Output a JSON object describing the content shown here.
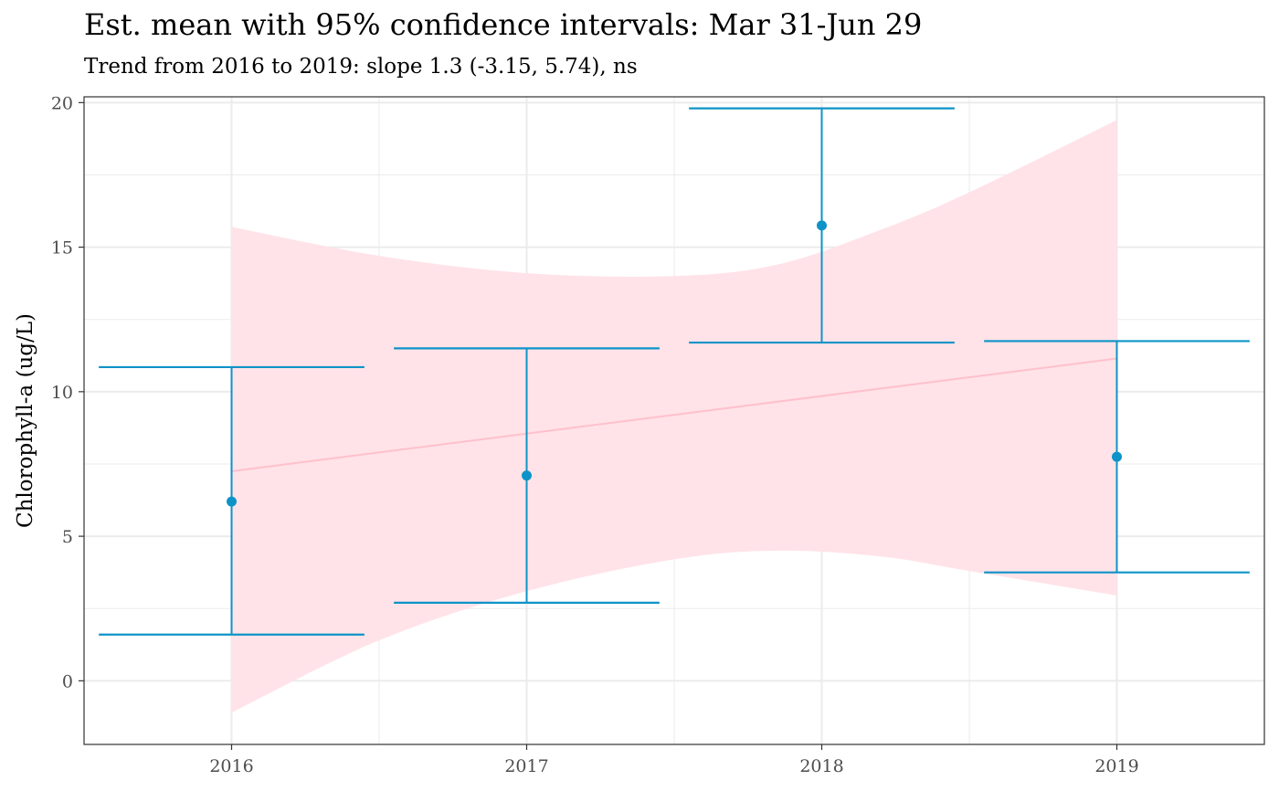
{
  "chart_data": {
    "type": "errorbar",
    "title": "Est. mean with 95% confidence intervals: Mar 31-Jun 29",
    "subtitle": "Trend from 2016 to 2019: slope 1.3 (-3.15, 5.74), ns",
    "xlabel": "",
    "ylabel": "Chlorophyll-a (ug/L)",
    "categories": [
      "2016",
      "2017",
      "2018",
      "2019"
    ],
    "x": [
      2016,
      2017,
      2018,
      2019
    ],
    "means": [
      6.2,
      7.1,
      15.75,
      7.75
    ],
    "lower": [
      1.6,
      2.7,
      11.7,
      3.75
    ],
    "upper": [
      10.85,
      11.5,
      19.8,
      11.75
    ],
    "trend": {
      "x": [
        2016,
        2019
      ],
      "y": [
        7.25,
        11.15
      ],
      "band": {
        "x": [
          2016,
          2016.5,
          2017,
          2017.5,
          2017.85,
          2018.2,
          2018.5,
          2019
        ],
        "lower": [
          -1.1,
          1.4,
          3.1,
          4.2,
          4.5,
          4.3,
          3.8,
          2.95
        ],
        "upper": [
          15.7,
          14.7,
          14.1,
          14.0,
          14.4,
          15.6,
          16.9,
          19.4
        ]
      }
    },
    "xlim": [
      2015.5,
      2019.5
    ],
    "ylim": [
      -2.2,
      20.2
    ],
    "yticks": [
      0,
      5,
      10,
      15,
      20
    ],
    "grid": true,
    "legend": "none",
    "colors": {
      "errorbar": "#0e93c8",
      "point": "#0e93c8",
      "trend_line": "#ffc0cb",
      "band": "#ffe3e8",
      "grid": "#ebebeb",
      "panel_border": "#333333"
    }
  }
}
